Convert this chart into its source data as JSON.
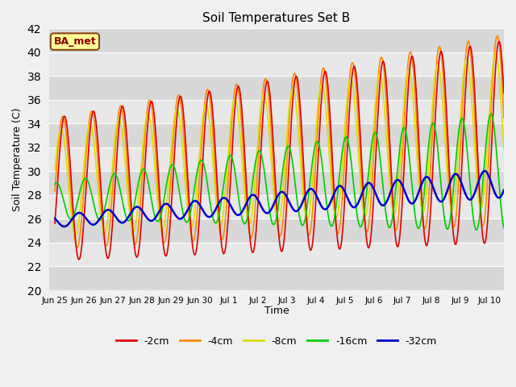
{
  "title": "Soil Temperatures Set B",
  "xlabel": "Time",
  "ylabel": "Soil Temperature (C)",
  "ylim": [
    20,
    42
  ],
  "yticks": [
    20,
    22,
    24,
    26,
    28,
    30,
    32,
    34,
    36,
    38,
    40,
    42
  ],
  "figsize": [
    6.4,
    4.8
  ],
  "dpi": 100,
  "background_color": "#f0f0f0",
  "plot_bg_color": "#e0e0e0",
  "grid_color": "#ffffff",
  "band_colors": [
    "#d8d8d8",
    "#e8e8e8"
  ],
  "annotation_text": "BA_met",
  "annotation_bg": "#ffff99",
  "annotation_border": "#8b4513",
  "annotation_text_color": "#8b0000",
  "series": {
    "-2cm": {
      "color": "#dd0000",
      "lw": 1.2
    },
    "-4cm": {
      "color": "#ff8800",
      "lw": 1.2
    },
    "-8cm": {
      "color": "#dddd00",
      "lw": 1.2
    },
    "-16cm": {
      "color": "#00cc00",
      "lw": 1.2
    },
    "-32cm": {
      "color": "#0000cc",
      "lw": 1.8
    }
  },
  "num_days": 15.5,
  "samples_per_day": 48,
  "tick_labels": [
    "Jun 25",
    "Jun 26",
    "Jun 27",
    "Jun 28",
    "Jun 29",
    "Jun 30",
    "Jul 1",
    "Jul 2",
    "Jul 3",
    "Jul 4",
    "Jul 5",
    "Jul 6",
    "Jul 7",
    "Jul 8",
    "Jul 9",
    "Jul 10"
  ],
  "tick_positions": [
    0,
    1,
    2,
    3,
    4,
    5,
    6,
    7,
    8,
    9,
    10,
    11,
    12,
    13,
    14,
    15
  ]
}
